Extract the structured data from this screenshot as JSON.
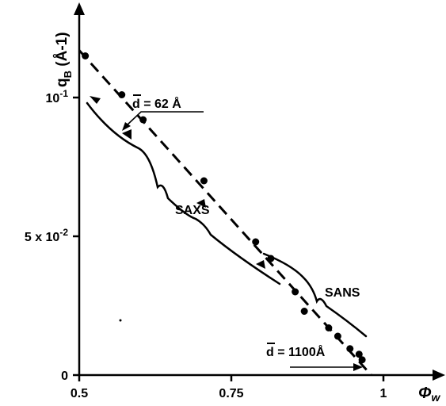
{
  "chart_data": {
    "type": "scatter",
    "xlabel": "Φw",
    "ylabel": "qB (Å-1)",
    "xlim": [
      0.5,
      1.0
    ],
    "ylim": [
      0,
      0.13
    ],
    "x_ticks": [
      {
        "value": 0.5,
        "label": "0.5"
      },
      {
        "value": 0.75,
        "label": "0.75"
      },
      {
        "value": 1.0,
        "label": "1"
      }
    ],
    "y_ticks": [
      {
        "value": 0,
        "label": "0"
      },
      {
        "value": 0.05,
        "label": "5 x 10-2"
      },
      {
        "value": 0.1,
        "label": "10-1"
      }
    ],
    "grid": false,
    "series": [
      {
        "marker": "filled-circle",
        "x": [
          0.51,
          0.57,
          0.605,
          0.705,
          0.79,
          0.815,
          0.855,
          0.87,
          0.91,
          0.925,
          0.945,
          0.96,
          0.965
        ],
        "y": [
          0.115,
          0.101,
          0.092,
          0.07,
          0.048,
          0.042,
          0.03,
          0.023,
          0.017,
          0.014,
          0.0095,
          0.0075,
          0.0055
        ]
      }
    ],
    "fit_line": {
      "style": "dashed",
      "x": [
        0.5,
        0.98
      ],
      "y": [
        0.117,
        0.0
      ]
    },
    "ranges": [
      {
        "label": "SAXS",
        "x_from": 0.5,
        "x_to": 0.8
      },
      {
        "label": "SANS",
        "x_from": 0.79,
        "x_to": 0.96
      }
    ],
    "annotations": [
      {
        "text": "d = 62 Å",
        "points_to": {
          "x": 0.57,
          "y": 0.101
        }
      },
      {
        "text": "d = 1100Å",
        "points_to": {
          "x": 0.96,
          "y": 0.0075
        }
      }
    ],
    "colors": {
      "ink": "#000000",
      "background": "#ffffff"
    }
  }
}
